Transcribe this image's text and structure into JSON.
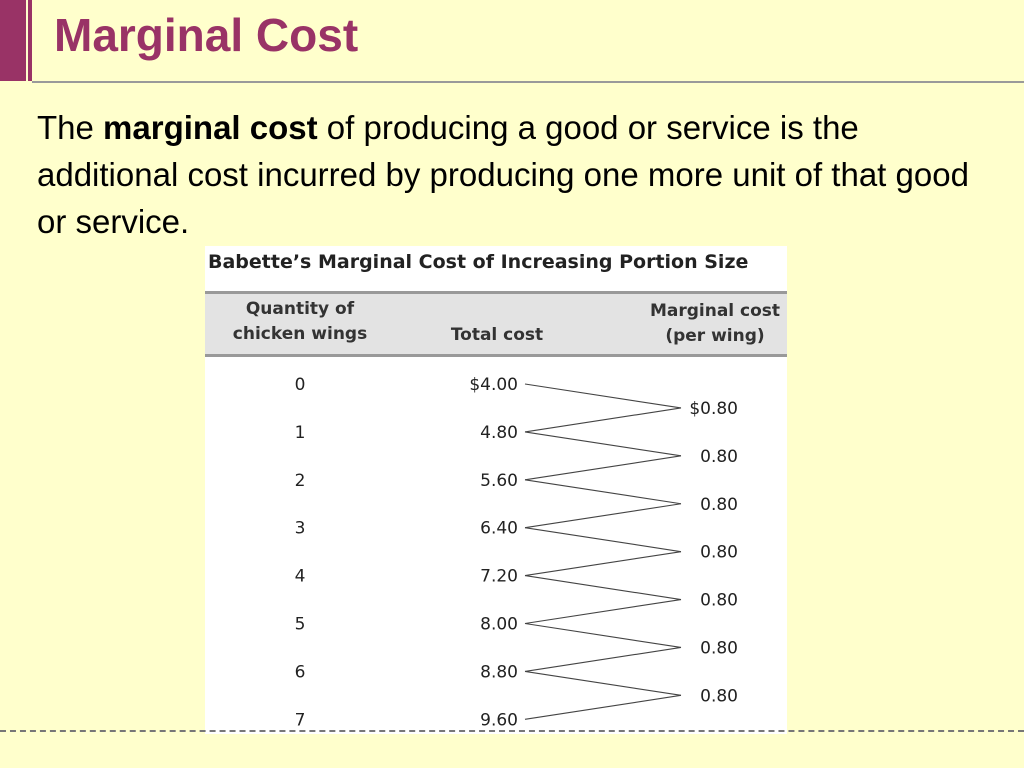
{
  "slide": {
    "title": "Marginal Cost",
    "definition": {
      "before": "The ",
      "bold": "marginal cost",
      "after": " of producing a good or service is the additional cost incurred by producing one more unit of that good or service."
    }
  },
  "table": {
    "caption": "Babette’s Marginal Cost of Increasing Portion Size",
    "headers": {
      "quantity": [
        "Quantity of",
        "chicken wings"
      ],
      "total_cost": "Total cost",
      "marginal_cost": [
        "Marginal cost",
        "(per wing)"
      ]
    },
    "quantities": [
      "0",
      "1",
      "2",
      "3",
      "4",
      "5",
      "6",
      "7"
    ],
    "total_costs": [
      "$4.00",
      "4.80",
      "5.60",
      "6.40",
      "7.20",
      "8.00",
      "8.80",
      "9.60"
    ],
    "marginal_costs": [
      "$0.80",
      "0.80",
      "0.80",
      "0.80",
      "0.80",
      "0.80",
      "0.80"
    ]
  },
  "colors": {
    "background": "#ffffcc",
    "title": "#993366",
    "header_band": "#e3e3e3"
  }
}
